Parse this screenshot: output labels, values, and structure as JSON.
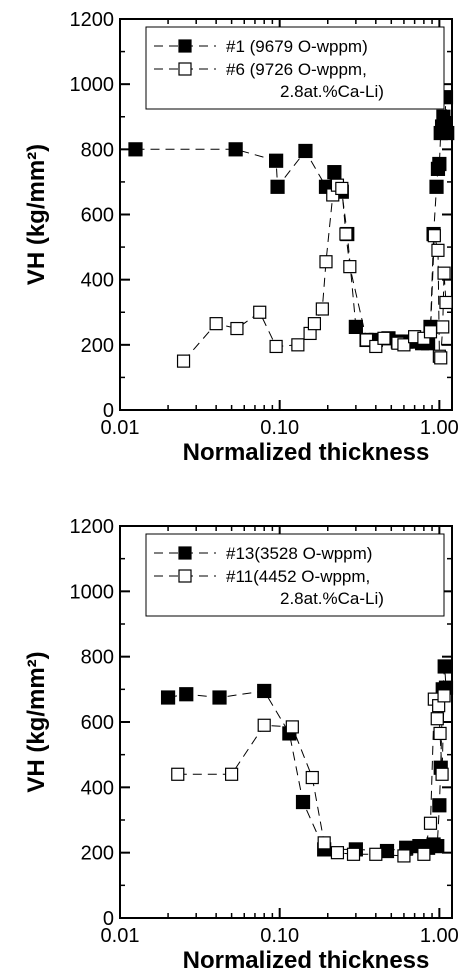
{
  "chart_data": [
    {
      "type": "scatter",
      "xlabel": "Normalized thickness",
      "ylabel": "VH (kg/mm²)",
      "xscale": "log",
      "xlim": [
        0.01,
        1.2
      ],
      "ylim": [
        0,
        1200
      ],
      "xticks": [
        0.01,
        0.1,
        1.0
      ],
      "xtick_labels": [
        "0.01",
        "0.10",
        "1.00"
      ],
      "yticks": [
        0,
        200,
        400,
        600,
        800,
        1000,
        1200
      ],
      "ytick_labels": [
        "0",
        "200",
        "400",
        "600",
        "800",
        "1000",
        "1200"
      ],
      "legend_position": "top-right",
      "series": [
        {
          "name": "#1 (9679 O-wppm)",
          "marker": "filled-square",
          "x": [
            0.0125,
            0.053,
            0.095,
            0.097,
            0.145,
            0.195,
            0.22,
            0.245,
            0.265,
            0.3,
            0.35,
            0.4,
            0.48,
            0.55,
            0.62,
            0.7,
            0.78,
            0.85,
            0.88,
            0.92,
            0.96,
            0.98,
            1.0,
            1.02,
            1.04,
            1.06,
            1.08,
            1.1,
            1.12
          ],
          "y": [
            800,
            800,
            765,
            685,
            795,
            685,
            730,
            670,
            540,
            255,
            215,
            215,
            220,
            210,
            210,
            210,
            205,
            205,
            255,
            540,
            685,
            740,
            755,
            850,
            870,
            900,
            880,
            960,
            850
          ]
        },
        {
          "name": "#6 (9726 O-wppm, 2.8at.%Ca-Li)",
          "marker": "open-square",
          "x": [
            0.025,
            0.04,
            0.054,
            0.075,
            0.095,
            0.13,
            0.155,
            0.165,
            0.185,
            0.195,
            0.215,
            0.23,
            0.245,
            0.26,
            0.275,
            0.35,
            0.4,
            0.45,
            0.55,
            0.6,
            0.7,
            0.8,
            0.88,
            0.93,
            0.98,
            1.0,
            1.02,
            1.05,
            1.07,
            1.1
          ],
          "y": [
            150,
            265,
            250,
            300,
            195,
            200,
            235,
            265,
            310,
            455,
            660,
            690,
            680,
            540,
            440,
            215,
            195,
            220,
            205,
            200,
            225,
            220,
            240,
            535,
            490,
            165,
            160,
            255,
            420,
            330
          ]
        }
      ]
    },
    {
      "type": "scatter",
      "xlabel": "Normalized thickness",
      "ylabel": "VH (kg/mm²)",
      "xscale": "log",
      "xlim": [
        0.01,
        1.2
      ],
      "ylim": [
        0,
        1200
      ],
      "xticks": [
        0.01,
        0.1,
        1.0
      ],
      "xtick_labels": [
        "0.01",
        "0.10",
        "1.00"
      ],
      "yticks": [
        0,
        200,
        400,
        600,
        800,
        1000,
        1200
      ],
      "ytick_labels": [
        "0",
        "200",
        "400",
        "600",
        "800",
        "1000",
        "1200"
      ],
      "legend_position": "top-right",
      "series": [
        {
          "name": "#13(3528 O-wppm)",
          "marker": "filled-square",
          "x": [
            0.02,
            0.026,
            0.042,
            0.08,
            0.115,
            0.14,
            0.19,
            0.3,
            0.47,
            0.62,
            0.75,
            0.85,
            0.92,
            0.97,
            1.0,
            1.02,
            1.05,
            1.08,
            1.1
          ],
          "y": [
            675,
            685,
            675,
            695,
            565,
            355,
            210,
            210,
            205,
            215,
            220,
            215,
            225,
            220,
            345,
            460,
            700,
            770,
            705
          ]
        },
        {
          "name": "#11(4452 O-wppm, 2.8at.%Ca-Li)",
          "marker": "open-square",
          "x": [
            0.023,
            0.05,
            0.08,
            0.12,
            0.16,
            0.19,
            0.23,
            0.29,
            0.4,
            0.6,
            0.8,
            0.88,
            0.93,
            0.97,
            0.99,
            1.01,
            1.04,
            1.07
          ],
          "y": [
            440,
            440,
            590,
            585,
            430,
            230,
            200,
            195,
            195,
            190,
            195,
            290,
            670,
            610,
            650,
            565,
            440,
            680
          ]
        }
      ]
    }
  ]
}
